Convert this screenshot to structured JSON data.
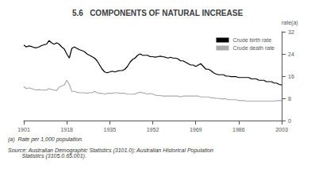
{
  "chart_data": {
    "type": "line",
    "title": "5.6   COMPONENTS OF NATURAL INCREASE",
    "ylabel": "rate(a)",
    "annotations": [
      "(a)  Rate per 1,000 population.",
      "Source: Australian Demographic Statistics (3101.0); Australian Historical Population\n         Statistics (3105.0.65.001)."
    ],
    "xlim": [
      1901,
      2003
    ],
    "xticks": [
      1901,
      1918,
      1935,
      1952,
      1969,
      1986,
      2003
    ],
    "ylim": [
      0,
      32
    ],
    "yticks": [
      0,
      8,
      16,
      24,
      32
    ],
    "grid": false,
    "legend": "upper right",
    "x": [
      1901,
      1902,
      1903,
      1904,
      1905,
      1906,
      1907,
      1908,
      1909,
      1910,
      1911,
      1912,
      1913,
      1914,
      1915,
      1916,
      1917,
      1918,
      1919,
      1920,
      1921,
      1922,
      1923,
      1924,
      1925,
      1926,
      1927,
      1928,
      1929,
      1930,
      1931,
      1932,
      1933,
      1934,
      1935,
      1936,
      1937,
      1938,
      1939,
      1940,
      1941,
      1942,
      1943,
      1944,
      1945,
      1946,
      1947,
      1948,
      1949,
      1950,
      1951,
      1952,
      1953,
      1954,
      1955,
      1956,
      1957,
      1958,
      1959,
      1960,
      1961,
      1962,
      1963,
      1964,
      1965,
      1966,
      1967,
      1968,
      1969,
      1970,
      1971,
      1972,
      1973,
      1974,
      1975,
      1976,
      1977,
      1978,
      1979,
      1980,
      1981,
      1982,
      1983,
      1984,
      1985,
      1986,
      1987,
      1988,
      1989,
      1990,
      1991,
      1992,
      1993,
      1994,
      1995,
      1996,
      1997,
      1998,
      1999,
      2000,
      2001,
      2002,
      2003
    ],
    "series": [
      {
        "name": "Crude birth rate",
        "color": "#000000",
        "values": [
          27.2,
          26.5,
          26.9,
          26.7,
          26.3,
          26.2,
          26.5,
          27.0,
          27.3,
          27.5,
          28.8,
          28.0,
          27.5,
          28.0,
          27.5,
          26.5,
          25.8,
          24.0,
          22.5,
          26.0,
          26.5,
          26.0,
          25.5,
          25.2,
          24.8,
          24.0,
          23.5,
          23.0,
          22.5,
          21.5,
          20.0,
          18.5,
          17.5,
          17.2,
          17.5,
          17.8,
          17.5,
          17.8,
          18.0,
          18.0,
          18.5,
          19.5,
          21.0,
          22.0,
          22.5,
          23.5,
          24.0,
          23.5,
          23.5,
          23.5,
          23.0,
          23.0,
          22.8,
          23.0,
          23.2,
          23.0,
          22.8,
          22.5,
          22.8,
          22.5,
          22.5,
          22.2,
          21.5,
          21.5,
          21.0,
          20.5,
          20.0,
          20.0,
          19.5,
          20.0,
          20.5,
          19.5,
          18.5,
          18.5,
          18.0,
          17.2,
          16.8,
          16.5,
          16.5,
          16.5,
          16.0,
          16.0,
          15.8,
          15.8,
          15.8,
          15.5,
          15.5,
          15.5,
          15.5,
          15.5,
          15.0,
          15.0,
          15.0,
          14.5,
          14.5,
          14.5,
          14.0,
          14.0,
          14.0,
          13.5,
          13.5,
          13.0,
          12.8
        ]
      },
      {
        "name": "Crude death rate",
        "color": "#aaaaaa",
        "values": [
          12.2,
          11.5,
          11.8,
          11.5,
          11.2,
          11.0,
          11.2,
          11.0,
          11.0,
          11.0,
          11.5,
          11.2,
          11.0,
          10.8,
          12.0,
          12.5,
          12.8,
          14.5,
          13.0,
          10.5,
          10.5,
          10.2,
          10.0,
          10.0,
          10.0,
          9.8,
          10.0,
          10.0,
          10.5,
          10.0,
          9.8,
          9.8,
          9.5,
          9.8,
          9.8,
          9.8,
          10.0,
          10.0,
          9.8,
          9.8,
          9.8,
          9.5,
          9.5,
          9.5,
          9.5,
          10.0,
          10.2,
          10.0,
          9.8,
          9.5,
          9.8,
          9.5,
          9.2,
          9.0,
          9.0,
          8.8,
          8.8,
          8.8,
          8.8,
          8.8,
          8.8,
          8.8,
          8.5,
          8.8,
          8.8,
          8.8,
          8.8,
          8.8,
          8.8,
          8.8,
          8.5,
          8.5,
          8.5,
          8.5,
          8.2,
          8.2,
          8.0,
          8.0,
          7.8,
          7.8,
          7.8,
          7.5,
          7.5,
          7.5,
          7.5,
          7.2,
          7.2,
          7.2,
          7.0,
          7.0,
          7.0,
          7.0,
          7.0,
          7.0,
          7.0,
          7.0,
          7.0,
          7.0,
          7.0,
          7.0,
          7.2,
          7.2,
          7.2
        ]
      }
    ]
  }
}
